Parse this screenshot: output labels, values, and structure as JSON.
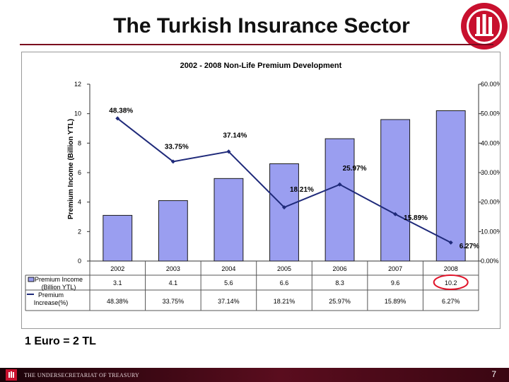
{
  "slide": {
    "title": "The Turkish Insurance Sector",
    "note": "1 Euro = 2 TL",
    "footer_text": "THE UNDERSECRETARIAT OF TREASURY",
    "page_number": "7"
  },
  "colors": {
    "bar_fill": "#9a9ef0",
    "bar_stroke": "#1a1a1a",
    "line": "#1f2a7a",
    "highlight_circle": "#e0142a",
    "accent": "#7a0a1e"
  },
  "chart_data": {
    "type": "bar",
    "title": "2002 - 2008 Non-Life Premium Development",
    "ylabel": "Premium Income (Billion YTL)",
    "ylim": [
      0,
      12
    ],
    "y_ticks": [
      "0",
      "2",
      "4",
      "6",
      "8",
      "10",
      "12"
    ],
    "y2lim": [
      0,
      60
    ],
    "y2_ticks": [
      "0.00%",
      "10.00%",
      "20.00%",
      "30.00%",
      "40.00%",
      "50.00%",
      "60.00%"
    ],
    "categories": [
      "2002",
      "2003",
      "2004",
      "2005",
      "2006",
      "2007",
      "2008"
    ],
    "legend_position": "bottom-left table",
    "series": [
      {
        "name": "Premium Income (Billion YTL)",
        "type": "bar",
        "axis": "left",
        "values": [
          3.1,
          4.1,
          5.6,
          6.6,
          8.3,
          9.6,
          10.2
        ],
        "labels": [
          "3.1",
          "4.1",
          "5.6",
          "6.6",
          "8.3",
          "9.6",
          "10.2"
        ]
      },
      {
        "name": "Premium Increase(%)",
        "type": "line",
        "axis": "right",
        "values": [
          48.38,
          33.75,
          37.14,
          18.21,
          25.97,
          15.89,
          6.27
        ],
        "labels": [
          "48.38%",
          "33.75%",
          "37.14%",
          "18.21%",
          "25.97%",
          "15.89%",
          "6.27%"
        ]
      }
    ],
    "annotations": [
      {
        "type": "circle",
        "target": "Premium Income 2008 value"
      }
    ]
  }
}
